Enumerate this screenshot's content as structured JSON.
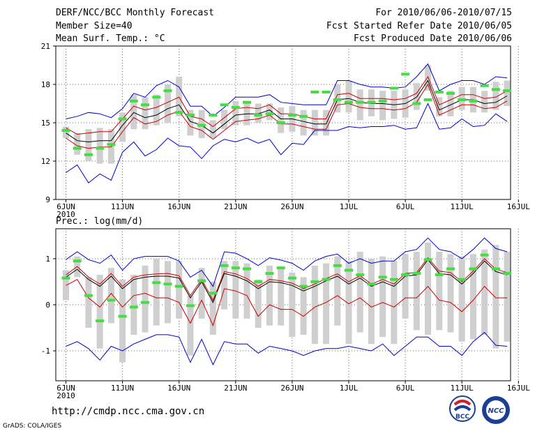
{
  "header": {
    "title": "DERF/NCC/BCC Monthly Forecast",
    "member_size": "Member Size=40",
    "variable": "Mean Surf. Temp.: °C",
    "forecast_period": "For 2010/06/06-2010/07/15",
    "start_date": "Fcst Started Refer Date 2010/06/05",
    "produced_date": "Fcst Produced Date 2010/06/06"
  },
  "footer": {
    "url": "http://cmdp.ncc.cma.gov.cn",
    "grads_credit": "GrADS: COLA/IGES",
    "logo_bcc": "BCC",
    "logo_ncc": "NCC"
  },
  "colors": {
    "mean": "#000000",
    "spread": "#cc0000",
    "extreme": "#0000cc",
    "box": "#cfcfcf",
    "median": "#44dd44"
  },
  "chart_data": [
    {
      "type": "line",
      "title": "",
      "ylabel": "Mean Surf. Temp.: °C",
      "ylim": [
        9,
        21
      ],
      "yticks": [
        "9",
        "12",
        "15",
        "18",
        "21"
      ],
      "xtick_labels": [
        "6JUN",
        "11JUN",
        "16JUN",
        "21JUN",
        "26JUN",
        "1JUL",
        "6JUL",
        "11JUL",
        "16JUL"
      ],
      "xtick_sublabel": "2010",
      "x_days": [
        0,
        1,
        2,
        3,
        4,
        5,
        6,
        7,
        8,
        9,
        10,
        11,
        12,
        13,
        14,
        15,
        16,
        17,
        18,
        19,
        20,
        21,
        22,
        23,
        24,
        25,
        26,
        27,
        28,
        29,
        30,
        31,
        32,
        33,
        34,
        35,
        36,
        37,
        38,
        39
      ],
      "series": [
        {
          "name": "ensemble mean",
          "color": "#000000",
          "values": [
            14.2,
            13.6,
            13.5,
            13.6,
            13.6,
            14.8,
            15.8,
            15.4,
            15.6,
            16.1,
            16.4,
            15.1,
            14.8,
            14.2,
            14.9,
            15.6,
            15.7,
            15.7,
            16.0,
            15.3,
            15.3,
            15.1,
            14.9,
            14.9,
            16.8,
            16.9,
            16.6,
            16.5,
            16.5,
            16.4,
            16.5,
            17.0,
            18.3,
            16.0,
            16.4,
            16.8,
            16.8,
            16.5,
            16.6,
            17.1
          ]
        },
        {
          "name": "mean + 1 std",
          "color": "#cc0000",
          "values": [
            14.6,
            14.1,
            14.2,
            14.3,
            14.3,
            15.3,
            16.3,
            16.0,
            16.2,
            16.6,
            17.0,
            15.5,
            15.3,
            14.7,
            15.4,
            16.1,
            16.2,
            16.1,
            16.4,
            15.7,
            15.7,
            15.5,
            15.3,
            15.3,
            17.2,
            17.3,
            16.9,
            16.9,
            16.9,
            16.8,
            16.9,
            17.3,
            18.6,
            16.4,
            16.8,
            17.2,
            17.2,
            16.9,
            17.0,
            17.5
          ]
        },
        {
          "name": "mean - 1 std",
          "color": "#cc0000",
          "values": [
            13.8,
            13.2,
            13.0,
            13.1,
            13.1,
            14.3,
            15.4,
            14.9,
            15.1,
            15.6,
            15.9,
            14.7,
            14.4,
            13.7,
            14.4,
            15.1,
            15.2,
            15.3,
            15.6,
            14.9,
            14.9,
            14.7,
            14.5,
            14.5,
            16.4,
            16.5,
            16.2,
            16.1,
            16.1,
            16.0,
            16.1,
            16.6,
            18.0,
            15.6,
            16.0,
            16.4,
            16.4,
            16.1,
            16.2,
            16.7
          ]
        },
        {
          "name": "ensemble max",
          "color": "#0000cc",
          "values": [
            15.3,
            15.5,
            15.8,
            15.7,
            15.4,
            16.1,
            17.3,
            17.0,
            17.9,
            18.3,
            17.8,
            16.3,
            16.3,
            15.5,
            16.2,
            17.0,
            17.0,
            17.0,
            17.2,
            16.6,
            16.5,
            16.4,
            16.4,
            16.4,
            18.3,
            18.3,
            18.0,
            17.8,
            17.8,
            17.7,
            17.8,
            18.6,
            19.6,
            17.5,
            18.0,
            18.3,
            18.3,
            18.0,
            18.6,
            18.5
          ]
        },
        {
          "name": "ensemble min",
          "color": "#0000cc",
          "values": [
            11.1,
            11.7,
            10.3,
            11.0,
            10.5,
            12.7,
            13.5,
            12.4,
            12.9,
            13.8,
            13.2,
            13.1,
            12.2,
            13.2,
            13.7,
            13.5,
            13.8,
            13.4,
            13.7,
            12.5,
            13.4,
            13.3,
            14.4,
            14.4,
            14.4,
            14.7,
            14.6,
            14.7,
            14.7,
            14.8,
            14.5,
            14.6,
            16.5,
            14.5,
            14.6,
            15.3,
            14.7,
            14.8,
            15.7,
            15.1
          ]
        }
      ],
      "boxes": {
        "low": [
          13.8,
          12.5,
          12.0,
          11.8,
          11.8,
          13.5,
          14.5,
          14.5,
          14.8,
          15.0,
          15.5,
          14.0,
          13.8,
          13.8,
          14.5,
          14.8,
          14.8,
          15.0,
          15.2,
          14.2,
          14.3,
          14.0,
          14.0,
          14.0,
          15.8,
          15.8,
          15.2,
          15.5,
          15.2,
          15.3,
          15.4,
          16.0,
          17.5,
          15.5,
          15.5,
          16.0,
          15.8,
          15.8,
          16.0,
          16.3
        ],
        "high": [
          14.7,
          14.2,
          14.5,
          14.6,
          14.5,
          15.8,
          17.2,
          17.0,
          17.2,
          18.0,
          18.6,
          16.0,
          16.0,
          15.2,
          16.0,
          16.7,
          16.5,
          16.5,
          16.5,
          16.2,
          16.3,
          16.0,
          16.0,
          16.0,
          18.0,
          18.3,
          17.6,
          17.6,
          17.5,
          17.5,
          17.6,
          18.1,
          19.5,
          17.0,
          17.5,
          17.8,
          17.8,
          17.5,
          18.2,
          18.3
        ],
        "median": [
          14.4,
          13.0,
          12.5,
          13.0,
          13.3,
          15.3,
          16.7,
          16.4,
          17.0,
          17.5,
          15.8,
          15.6,
          14.8,
          15.6,
          16.4,
          16.2,
          16.6,
          15.6,
          15.7,
          15.0,
          15.6,
          15.5,
          17.4,
          17.4,
          16.8,
          16.6,
          16.6,
          16.6,
          16.7,
          17.7,
          18.8,
          16.5,
          16.8,
          17.4,
          17.3,
          16.8,
          16.7,
          17.9,
          17.6,
          17.5
        ]
      }
    },
    {
      "type": "line",
      "title": "",
      "ylabel": "Prec.: log(mm/d)",
      "ylim": [
        -1.65,
        1.65
      ],
      "yticks": [
        "1",
        "0",
        "-1"
      ],
      "ytick_values": [
        1,
        0,
        -1
      ],
      "xtick_labels": [
        "6JUN",
        "11JUN",
        "16JUN",
        "21JUN",
        "26JUN",
        "1JUL",
        "6JUL",
        "11JUL",
        "16JUL"
      ],
      "xtick_sublabel": "2010",
      "x_days": [
        0,
        1,
        2,
        3,
        4,
        5,
        6,
        7,
        8,
        9,
        10,
        11,
        12,
        13,
        14,
        15,
        16,
        17,
        18,
        19,
        20,
        21,
        22,
        23,
        24,
        25,
        26,
        27,
        28,
        29,
        30,
        31,
        32,
        33,
        34,
        35,
        36,
        37,
        38,
        39
      ],
      "series": [
        {
          "name": "ensemble mean",
          "color": "#000000",
          "values": [
            0.6,
            0.77,
            0.55,
            0.4,
            0.62,
            0.35,
            0.55,
            0.6,
            0.62,
            0.62,
            0.58,
            0.15,
            0.5,
            0.05,
            0.68,
            0.62,
            0.52,
            0.35,
            0.5,
            0.48,
            0.42,
            0.3,
            0.4,
            0.52,
            0.62,
            0.45,
            0.58,
            0.4,
            0.5,
            0.4,
            0.62,
            0.65,
            0.98,
            0.68,
            0.65,
            0.45,
            0.68,
            0.95,
            0.72,
            0.65
          ]
        },
        {
          "name": "mean + 1 std",
          "color": "#cc0000",
          "values": [
            0.65,
            0.83,
            0.6,
            0.45,
            0.68,
            0.4,
            0.6,
            0.65,
            0.67,
            0.68,
            0.63,
            0.2,
            0.55,
            0.1,
            0.72,
            0.67,
            0.57,
            0.4,
            0.55,
            0.52,
            0.47,
            0.35,
            0.45,
            0.57,
            0.67,
            0.5,
            0.63,
            0.45,
            0.55,
            0.45,
            0.68,
            0.7,
            1.02,
            0.73,
            0.7,
            0.5,
            0.73,
            1.0,
            0.77,
            0.7
          ]
        },
        {
          "name": "mean - 1 std",
          "color": "#cc0000",
          "values": [
            0.42,
            0.55,
            0.15,
            -0.05,
            0.25,
            -0.05,
            0.2,
            0.25,
            0.15,
            0.15,
            0.05,
            -0.4,
            0.1,
            -0.45,
            0.35,
            0.3,
            0.2,
            -0.25,
            0.0,
            -0.1,
            -0.1,
            -0.25,
            -0.05,
            0.05,
            0.2,
            0.02,
            0.15,
            -0.05,
            0.05,
            -0.05,
            0.15,
            0.15,
            0.4,
            0.1,
            0.05,
            -0.15,
            0.1,
            0.4,
            0.15,
            0.15
          ]
        },
        {
          "name": "ensemble max",
          "color": "#0000cc",
          "values": [
            0.98,
            1.15,
            0.98,
            0.9,
            1.08,
            0.75,
            1.0,
            1.05,
            1.05,
            1.05,
            0.95,
            0.6,
            0.75,
            0.4,
            1.15,
            1.12,
            1.0,
            0.85,
            1.02,
            0.97,
            0.9,
            0.75,
            0.95,
            1.05,
            1.1,
            0.9,
            1.0,
            0.9,
            0.95,
            0.95,
            1.15,
            1.2,
            1.45,
            1.2,
            1.15,
            1.0,
            1.2,
            1.45,
            1.22,
            1.15
          ]
        },
        {
          "name": "ensemble min",
          "color": "#0000cc",
          "values": [
            -0.9,
            -0.8,
            -0.95,
            -1.2,
            -0.9,
            -1.0,
            -0.85,
            -0.75,
            -0.65,
            -0.65,
            -0.7,
            -1.25,
            -0.75,
            -1.3,
            -0.8,
            -0.85,
            -0.85,
            -1.05,
            -0.9,
            -0.95,
            -1.0,
            -1.1,
            -1.0,
            -0.95,
            -0.95,
            -0.9,
            -0.95,
            -1.0,
            -0.85,
            -1.1,
            -0.9,
            -0.7,
            -0.7,
            -0.9,
            -0.9,
            -1.1,
            -0.8,
            -0.6,
            -0.88,
            -0.9
          ]
        }
      ],
      "boxes": {
        "low": [
          0.1,
          0.6,
          -0.5,
          -0.95,
          -0.4,
          -1.25,
          -0.65,
          -0.6,
          -0.45,
          -0.4,
          -0.3,
          -1.1,
          -0.3,
          -0.65,
          -0.1,
          -0.3,
          -0.3,
          -0.5,
          -0.45,
          -0.45,
          -0.7,
          -0.65,
          -0.85,
          -0.85,
          -0.45,
          -0.85,
          -0.6,
          -0.85,
          -0.7,
          -0.85,
          -0.3,
          -0.55,
          -0.65,
          -0.55,
          -0.6,
          -0.8,
          -0.75,
          -0.65,
          -0.95,
          -0.8
        ],
        "high": [
          0.75,
          1.05,
          0.6,
          0.65,
          0.8,
          0.55,
          0.65,
          0.85,
          1.0,
          0.95,
          0.95,
          0.2,
          0.8,
          0.5,
          0.95,
          0.95,
          0.9,
          0.55,
          0.85,
          0.8,
          0.7,
          0.6,
          0.85,
          0.9,
          1.05,
          0.95,
          1.15,
          1.0,
          1.05,
          0.95,
          1.1,
          1.15,
          1.35,
          1.15,
          1.1,
          1.05,
          1.1,
          1.2,
          1.3,
          1.15
        ],
        "median": [
          0.58,
          0.95,
          0.2,
          -0.35,
          0.1,
          -0.25,
          -0.05,
          0.05,
          0.48,
          0.45,
          0.4,
          -0.02,
          0.52,
          0.25,
          0.85,
          0.8,
          0.78,
          0.5,
          0.68,
          0.8,
          0.58,
          0.4,
          0.5,
          0.55,
          0.85,
          0.75,
          0.65,
          0.45,
          0.6,
          0.55,
          0.65,
          0.68,
          0.98,
          0.65,
          0.78,
          0.55,
          0.78,
          1.08,
          0.78,
          0.68
        ]
      }
    }
  ]
}
